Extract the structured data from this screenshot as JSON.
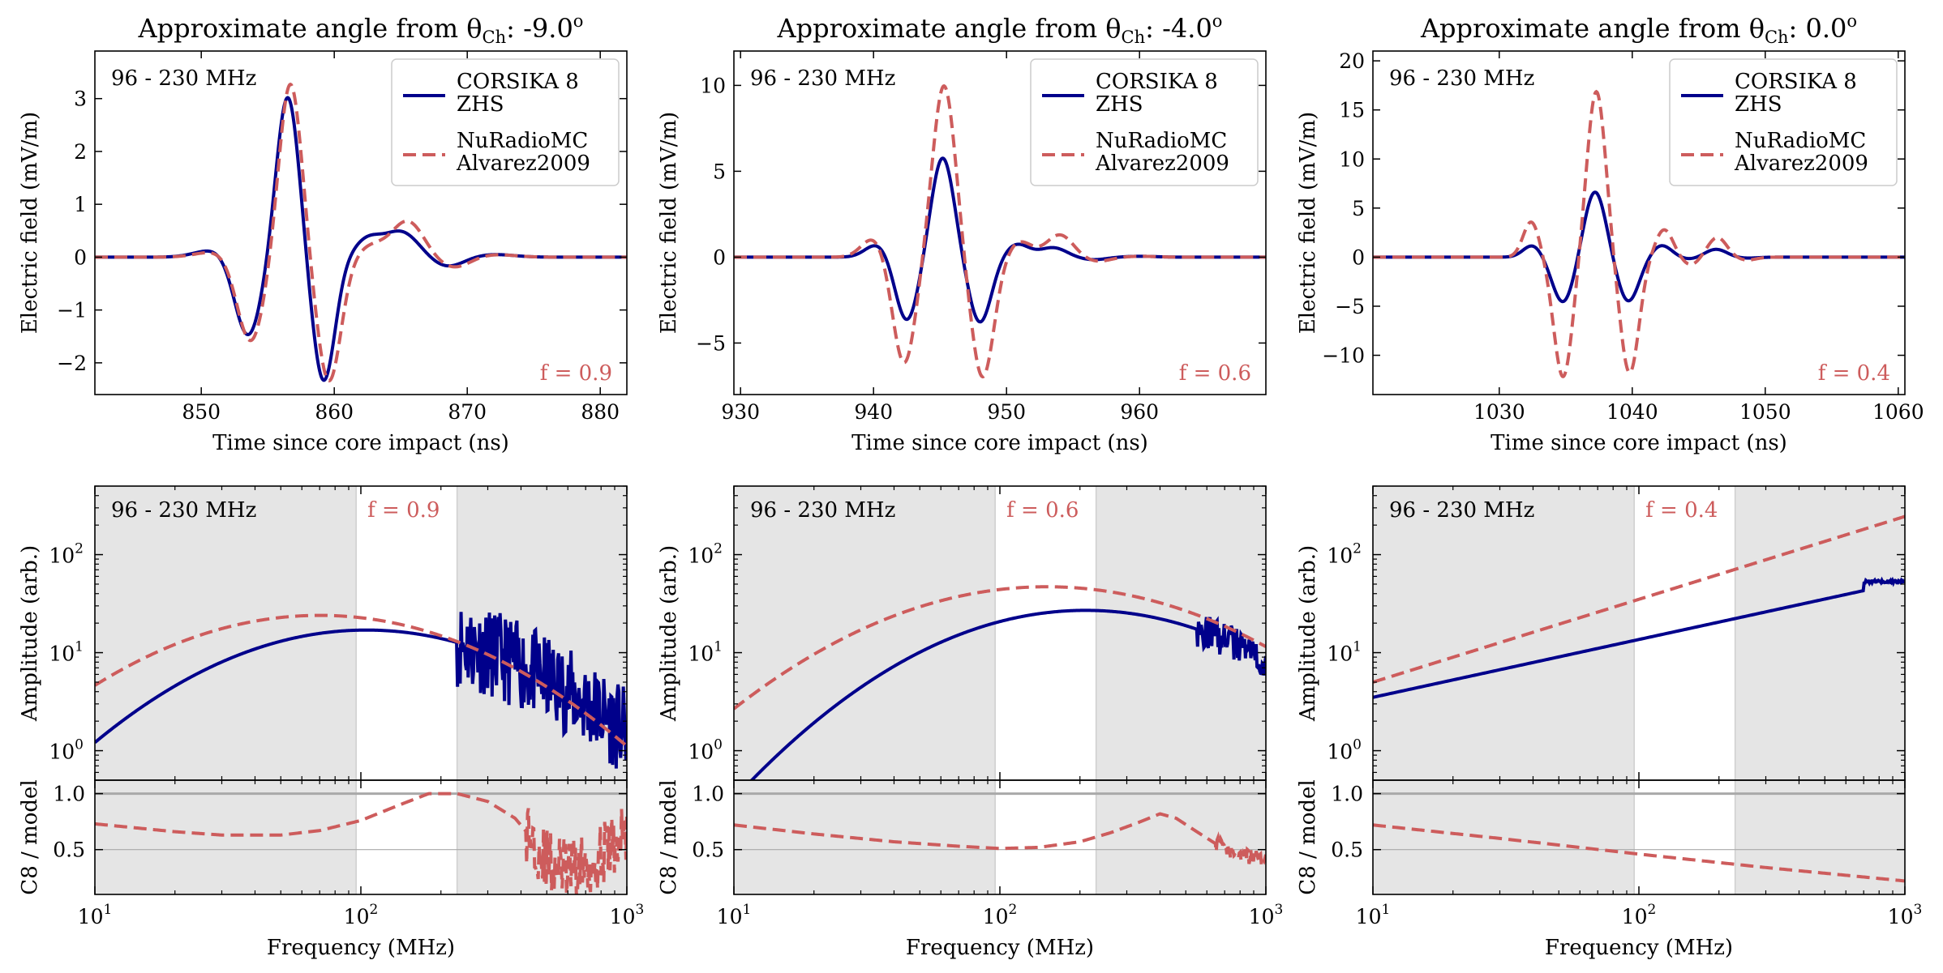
{
  "colors": {
    "c8": "#00008b",
    "model": "#cd5c5c",
    "shade": "#e5e5e5",
    "refline": "#a9a9a9"
  },
  "legend": {
    "c8_line1": "CORSIKA 8",
    "c8_line2": "ZHS",
    "model_line1": "NuRadioMC",
    "model_line2": "Alvarez2009"
  },
  "chart_data": [
    {
      "type": "line",
      "title_prefix": "Approximate angle from θ",
      "title_sub": "Ch",
      "title_value": ": -9.0",
      "title_sup": "o",
      "band_label": "96 - 230 MHz",
      "f_label": "f = 0.9",
      "f_value": 0.9,
      "time": {
        "xlabel": "Time since core impact (ns)",
        "ylabel": "Electric field (mV/m)",
        "xlim": [
          842,
          882
        ],
        "ylim": [
          -2.6,
          3.9
        ],
        "xticks": [
          850,
          860,
          870,
          880
        ],
        "xtick_labels": [
          "850",
          "860",
          "870",
          "880"
        ],
        "yticks": [
          -2,
          -1,
          0,
          1,
          2,
          3
        ],
        "ytick_labels": [
          "−2",
          "−1",
          "0",
          "1",
          "2",
          "3"
        ],
        "c8_pulse": [
          [
            851,
            0.14,
            1.4
          ],
          [
            853.5,
            -1.5,
            1.0
          ],
          [
            856.5,
            3.05,
            0.85
          ],
          [
            859.2,
            -2.35,
            0.85
          ],
          [
            862.5,
            0.32,
            1.0
          ],
          [
            865,
            0.48,
            1.3
          ],
          [
            868.5,
            -0.18,
            1.2
          ],
          [
            872,
            0.05,
            1.5
          ]
        ],
        "model_pulse": [
          [
            851,
            0.1,
            1.4
          ],
          [
            853.7,
            -1.6,
            1.0
          ],
          [
            856.7,
            3.3,
            0.85
          ],
          [
            859.6,
            -2.35,
            0.9
          ],
          [
            862.8,
            0.2,
            1.0
          ],
          [
            865.5,
            0.68,
            1.2
          ],
          [
            869,
            -0.2,
            1.2
          ],
          [
            872,
            0.05,
            1.5
          ]
        ]
      },
      "spectrum": {
        "ylabel": "Amplitude (arb.)",
        "ylim": [
          0.5,
          500
        ],
        "ytick_labels": [
          "10",
          "10",
          "10"
        ],
        "ytick_sups": [
          "0",
          "1",
          "2"
        ],
        "c8": {
          "amp": 17,
          "peak_mhz": 105,
          "k": 2.2,
          "noise_from_mhz": 230,
          "noise_floor": 0.35,
          "noise_jitter": 0.9
        },
        "model": {
          "amp": 24,
          "peak_mhz": 70,
          "k": 2.0
        }
      },
      "ratio": {
        "ylabel": "C8 / model",
        "ylim": [
          0.1,
          1.12
        ],
        "yticks": [
          0.5,
          1.0
        ],
        "ytick_labels": [
          "0.5",
          "1.0"
        ],
        "curve": [
          [
            10,
            0.73
          ],
          [
            20,
            0.66
          ],
          [
            30,
            0.63
          ],
          [
            50,
            0.63
          ],
          [
            70,
            0.67
          ],
          [
            100,
            0.76
          ],
          [
            140,
            0.9
          ],
          [
            180,
            1.0
          ],
          [
            230,
            1.0
          ],
          [
            300,
            0.93
          ],
          [
            380,
            0.78
          ],
          [
            440,
            0.6
          ],
          [
            500,
            0.4
          ],
          [
            600,
            0.32
          ],
          [
            700,
            0.35
          ],
          [
            800,
            0.45
          ],
          [
            900,
            0.55
          ],
          [
            1000,
            0.65
          ]
        ],
        "noise_from_mhz": 420,
        "noise_amp": 0.28
      }
    },
    {
      "type": "line",
      "title_prefix": "Approximate angle from θ",
      "title_sub": "Ch",
      "title_value": ": -4.0",
      "title_sup": "o",
      "band_label": "96 - 230 MHz",
      "f_label": "f = 0.6",
      "f_value": 0.6,
      "time": {
        "xlabel": "Time since core impact (ns)",
        "ylabel": "Electric field (mV/m)",
        "xlim": [
          929.5,
          969.5
        ],
        "ylim": [
          -8.0,
          12.0
        ],
        "xticks": [
          930,
          940,
          950,
          960
        ],
        "xtick_labels": [
          "930",
          "940",
          "950",
          "960"
        ],
        "yticks": [
          -5,
          0,
          5,
          10
        ],
        "ytick_labels": [
          "−5",
          "0",
          "5",
          "10"
        ],
        "c8_pulse": [
          [
            940.3,
            0.75,
            0.9
          ],
          [
            942.5,
            -3.7,
            0.85
          ],
          [
            945.2,
            5.8,
            0.85
          ],
          [
            948,
            -3.8,
            0.85
          ],
          [
            950.8,
            0.75,
            0.9
          ],
          [
            953.5,
            0.55,
            1.0
          ],
          [
            956.5,
            -0.15,
            1.0
          ],
          [
            960,
            0.05,
            1.2
          ]
        ],
        "model_pulse": [
          [
            940,
            1.1,
            0.9
          ],
          [
            942.3,
            -6.2,
            0.85
          ],
          [
            945.3,
            10.0,
            0.85
          ],
          [
            948.2,
            -7.0,
            0.85
          ],
          [
            951,
            0.9,
            0.9
          ],
          [
            954,
            1.3,
            1.0
          ],
          [
            956.8,
            -0.25,
            1.0
          ],
          [
            960,
            0.05,
            1.2
          ]
        ]
      },
      "spectrum": {
        "ylabel": "Amplitude (arb.)",
        "ylim": [
          0.5,
          500
        ],
        "ytick_labels": [
          "10",
          "10",
          "10"
        ],
        "ytick_sups": [
          "0",
          "1",
          "2"
        ],
        "c8": {
          "amp": 27,
          "peak_mhz": 210,
          "k": 2.2,
          "noise_from_mhz": 550,
          "noise_floor": 1.5,
          "noise_jitter": 0.35
        },
        "model": {
          "amp": 47,
          "peak_mhz": 150,
          "k": 1.8
        }
      },
      "ratio": {
        "ylabel": "C8 / model",
        "ylim": [
          0.1,
          1.12
        ],
        "yticks": [
          0.5,
          1.0
        ],
        "ytick_labels": [
          "0.5",
          "1.0"
        ],
        "curve": [
          [
            10,
            0.72
          ],
          [
            20,
            0.64
          ],
          [
            40,
            0.57
          ],
          [
            70,
            0.53
          ],
          [
            100,
            0.51
          ],
          [
            140,
            0.52
          ],
          [
            200,
            0.57
          ],
          [
            260,
            0.65
          ],
          [
            330,
            0.74
          ],
          [
            400,
            0.82
          ],
          [
            460,
            0.78
          ],
          [
            550,
            0.66
          ],
          [
            650,
            0.55
          ],
          [
            800,
            0.46
          ],
          [
            1000,
            0.4
          ]
        ],
        "noise_from_mhz": 650,
        "noise_amp": 0.07
      }
    },
    {
      "type": "line",
      "title_prefix": "Approximate angle from θ",
      "title_sub": "Ch",
      "title_value": ": 0.0",
      "title_sup": "o",
      "band_label": "96 - 230 MHz",
      "f_label": "f = 0.4",
      "f_value": 0.4,
      "time": {
        "xlabel": "Time since core impact (ns)",
        "ylabel": "Electric field (mV/m)",
        "xlim": [
          1020.5,
          1060.5
        ],
        "ylim": [
          -14.0,
          21.0
        ],
        "xticks": [
          1030,
          1040,
          1050,
          1060
        ],
        "xtick_labels": [
          "1030",
          "1040",
          "1050",
          "1060"
        ],
        "yticks": [
          -10,
          -5,
          0,
          5,
          10,
          15,
          20
        ],
        "ytick_labels": [
          "−10",
          "−5",
          "0",
          "5",
          "10",
          "15",
          "20"
        ],
        "c8_pulse": [
          [
            1032.5,
            1.2,
            0.7
          ],
          [
            1034.8,
            -4.6,
            0.8
          ],
          [
            1037.2,
            6.7,
            0.8
          ],
          [
            1039.7,
            -4.5,
            0.8
          ],
          [
            1042.2,
            1.2,
            0.75
          ],
          [
            1044.3,
            -0.2,
            0.7
          ],
          [
            1046.3,
            0.8,
            0.8
          ],
          [
            1048.6,
            -0.1,
            0.8
          ]
        ],
        "model_pulse": [
          [
            1032.4,
            3.6,
            0.6
          ],
          [
            1034.8,
            -12.2,
            0.7
          ],
          [
            1037.3,
            16.9,
            0.7
          ],
          [
            1039.8,
            -11.8,
            0.7
          ],
          [
            1042.4,
            2.8,
            0.65
          ],
          [
            1044.4,
            -0.8,
            0.6
          ],
          [
            1046.4,
            2.0,
            0.7
          ],
          [
            1048.6,
            -0.3,
            0.7
          ]
        ]
      },
      "spectrum": {
        "ylabel": "Amplitude (arb.)",
        "ylim": [
          0.5,
          500
        ],
        "ytick_labels": [
          "10",
          "10",
          "10"
        ],
        "ytick_sups": [
          "0",
          "1",
          "2"
        ],
        "c8": {
          "amp": 53,
          "peak_mhz": 1000,
          "k": 0.0,
          "slope_from": 3.5,
          "noise_from_mhz": 700,
          "noise_floor": 53,
          "noise_jitter": 0.03
        },
        "model": {
          "amp": 245,
          "peak_mhz": 1000,
          "k": 0.0,
          "slope_from": 5.0
        }
      },
      "ratio": {
        "ylabel": "C8 / model",
        "ylim": [
          0.1,
          1.12
        ],
        "yticks": [
          0.5,
          1.0
        ],
        "ytick_labels": [
          "0.5",
          "1.0"
        ],
        "curve": [
          [
            10,
            0.72
          ],
          [
            30,
            0.6
          ],
          [
            100,
            0.46
          ],
          [
            300,
            0.34
          ],
          [
            1000,
            0.22
          ]
        ],
        "noise_from_mhz": 2000,
        "noise_amp": 0.0
      }
    }
  ],
  "shared": {
    "freq_xlabel": "Frequency (MHz)",
    "freq_xlim": [
      10,
      1000
    ],
    "freq_xtick_labels": [
      "10",
      "10",
      "10"
    ],
    "freq_xtick_sups": [
      "1",
      "2",
      "3"
    ],
    "band_low_mhz": 96,
    "band_high_mhz": 230
  }
}
